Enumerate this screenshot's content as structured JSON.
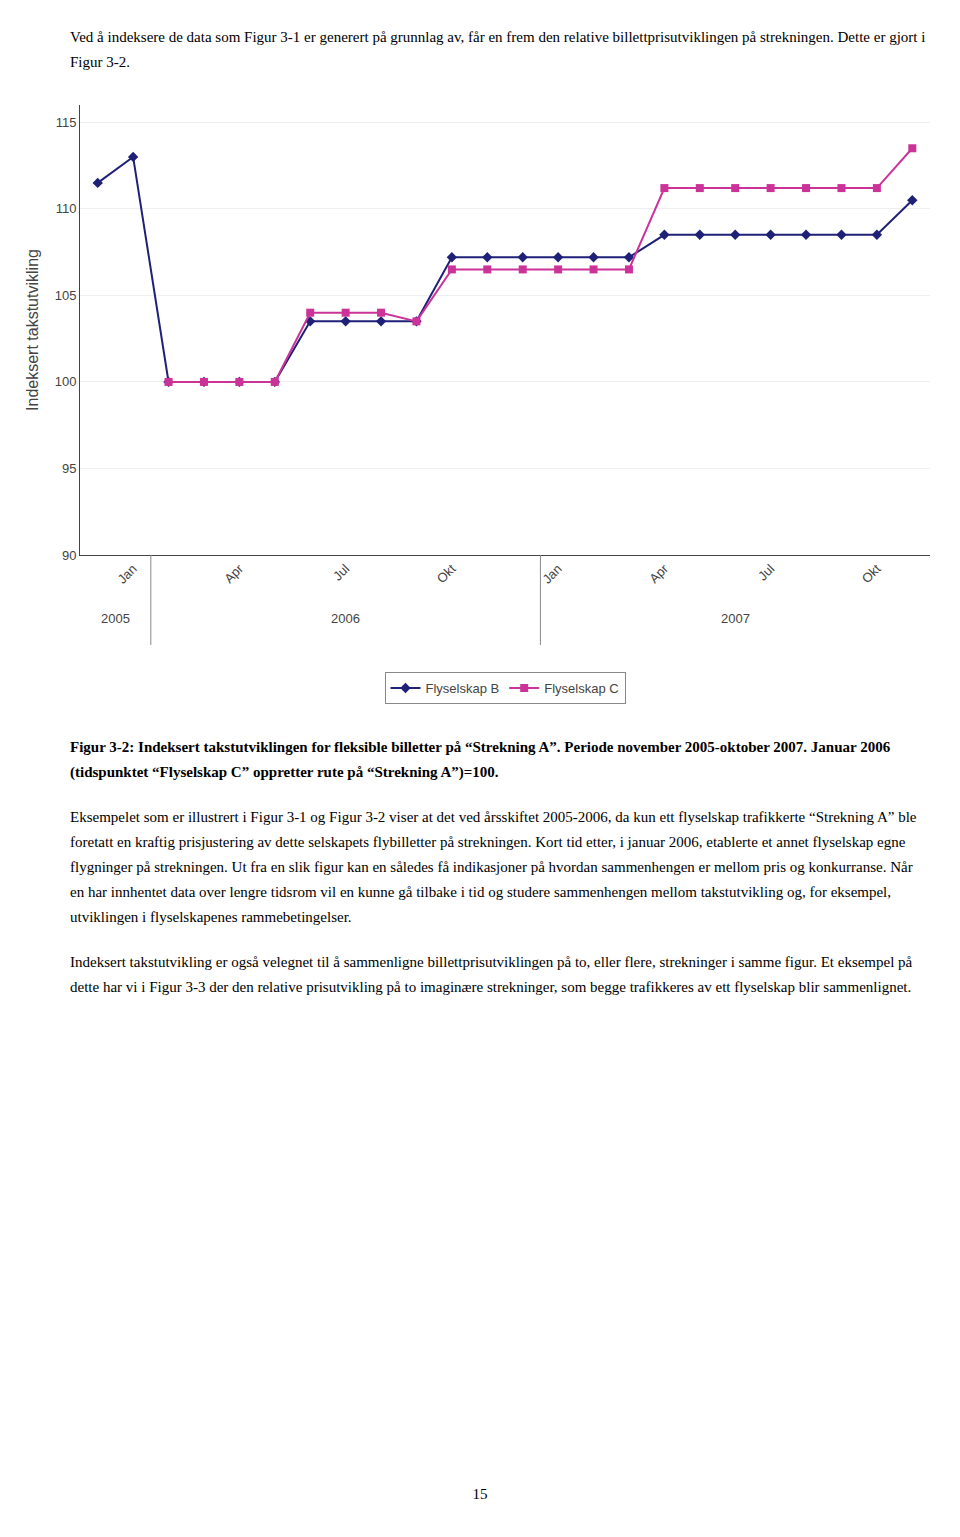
{
  "chart_data": {
    "type": "line",
    "title": "Figur 3-2: Indeksert takstutviklingen for fleksible billetter på “Strekning A”. Periode november 2005-oktober 2007. Januar 2006 (tidspunktet “Flyselskap C” oppretter rute på “Strekning A”)=100.",
    "ylabel": "Indeksert takstutvikling",
    "categories": [
      null,
      "Jan",
      null,
      null,
      "Apr",
      null,
      null,
      "Jul",
      null,
      null,
      "Okt",
      null,
      null,
      "Jan",
      null,
      null,
      "Apr",
      null,
      null,
      "Jul",
      null,
      null,
      "Okt",
      null
    ],
    "x_groups": [
      {
        "label": "2005",
        "from": 0,
        "to": 1
      },
      {
        "label": "2006",
        "from": 2,
        "to": 12
      },
      {
        "label": "2007",
        "from": 13,
        "to": 23
      }
    ],
    "series": [
      {
        "name": "Flyselskap B",
        "color": "#1F2178",
        "marker": "diamond",
        "values": [
          111.5,
          113.0,
          100.0,
          100.0,
          100.0,
          100.0,
          103.5,
          103.5,
          103.5,
          103.5,
          107.2,
          107.2,
          107.2,
          107.2,
          107.2,
          107.2,
          108.5,
          108.5,
          108.5,
          108.5,
          108.5,
          108.5,
          108.5,
          110.5
        ]
      },
      {
        "name": "Flyselskap C",
        "color": "#CC3399",
        "marker": "square",
        "values": [
          null,
          null,
          100.0,
          100.0,
          100.0,
          100.0,
          104.0,
          104.0,
          104.0,
          103.5,
          106.5,
          106.5,
          106.5,
          106.5,
          106.5,
          106.5,
          111.2,
          111.2,
          111.2,
          111.2,
          111.2,
          111.2,
          111.2,
          113.5
        ]
      }
    ],
    "ylim": [
      90,
      116
    ],
    "yticks": [
      90,
      95,
      100,
      105,
      110,
      115
    ],
    "grid": true,
    "legend": "bottom",
    "annotations": [
      "Ved å indeksere de data som Figur 3-1 er generert på grunnlag av, får en frem den relative billettprisutviklingen på strekningen. Dette er gjort i Figur 3-2.",
      "Eksempelet som er illustrert i Figur 3-1 og Figur 3-2 viser at det ved årsskiftet 2005-2006, da kun ett flyselskap trafikkerte “Strekning A” ble foretatt en kraftig prisjustering av dette selskapets flybilletter på strekningen. Kort tid etter, i januar 2006, etablerte et annet flyselskap egne flygninger på strekningen. Ut fra en slik figur kan en således få indikasjoner på hvordan sammenhengen er mellom pris og konkurranse. Når en har innhentet data over lengre tidsrom vil en kunne gå tilbake i tid og studere sammenhengen mellom takstutvikling og, for eksempel, utviklingen i flyselskapenes rammebetingelser.",
      "Indeksert takstutvikling er også velegnet til å sammenligne billettprisutviklingen på to, eller flere, strekninger i samme figur. Et eksempel på dette har vi i Figur 3-3 der den relative prisutvikling på to imaginære strekninger, som begge trafikkeres av ett flyselskap blir sammenlignet.",
      "15"
    ]
  }
}
